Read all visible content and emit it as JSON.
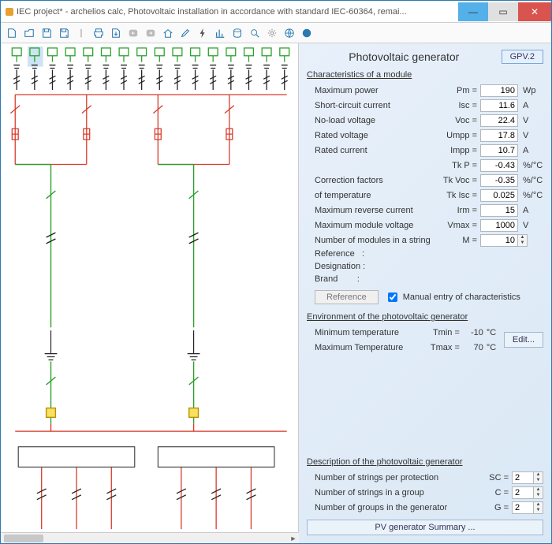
{
  "window": {
    "title": "IEC project* - archelios calc, Photovoltaic installation in accordance with standard IEC-60364, remai..."
  },
  "panel": {
    "title": "Photovoltaic generator",
    "gpv_label": "GPV.2",
    "section_characteristics": "Characteristics of a module",
    "section_environment": "Environment of the photovoltaic generator",
    "section_description": "Description of the photovoltaic generator",
    "rows": {
      "pm": {
        "label": "Maximum power",
        "sym": "Pm =",
        "val": "190",
        "unit": "Wp"
      },
      "isc": {
        "label": "Short-circuit current",
        "sym": "Isc =",
        "val": "11.6",
        "unit": "A"
      },
      "voc": {
        "label": "No-load voltage",
        "sym": "Voc =",
        "val": "22.4",
        "unit": "V"
      },
      "ump": {
        "label": "Rated voltage",
        "sym": "Umpp =",
        "val": "17.8",
        "unit": "V"
      },
      "imp": {
        "label": "Rated current",
        "sym": "Impp =",
        "val": "10.7",
        "unit": "A"
      },
      "tkp": {
        "label": "",
        "sym": "Tk P =",
        "val": "-0.43",
        "unit": "%/°C"
      },
      "tkv": {
        "label": "Correction factors",
        "sym": "Tk Voc =",
        "val": "-0.35",
        "unit": "%/°C"
      },
      "tki": {
        "label": "of temperature",
        "sym": "Tk Isc =",
        "val": "0.025",
        "unit": "%/°C"
      },
      "irm": {
        "label": "Maximum reverse current",
        "sym": "Irm =",
        "val": "15",
        "unit": "A"
      },
      "vmx": {
        "label": "Maximum module voltage",
        "sym": "Vmax =",
        "val": "1000",
        "unit": "V"
      },
      "m": {
        "label": "Number of modules in a string",
        "sym": "M =",
        "val": "10",
        "unit": ""
      }
    },
    "meta": {
      "reference": "Reference",
      "designation": "Designation",
      "brand": "Brand",
      "sep": ":"
    },
    "ref_button": "Reference",
    "manual_entry": "Manual entry of characteristics",
    "env": {
      "tmin": {
        "label": "Minimum temperature",
        "sym": "Tmin =",
        "val": "-10",
        "unit": "°C"
      },
      "tmax": {
        "label": "Maximum Temperature",
        "sym": "Tmax =",
        "val": "70",
        "unit": "°C"
      },
      "edit": "Edit..."
    },
    "desc": {
      "sc": {
        "label": "Number of strings per protection",
        "sym": "SC =",
        "val": "2"
      },
      "c": {
        "label": "Number of strings in a group",
        "sym": "C =",
        "val": "2"
      },
      "g": {
        "label": "Number of groups in the generator",
        "sym": "G =",
        "val": "2"
      }
    },
    "summary": "PV generator Summary ..."
  },
  "colors": {
    "red": "#d83a2a",
    "green": "#2aa02a",
    "black": "#222222",
    "busbar": "#d83a2a",
    "highlight": "#b8d8f0"
  }
}
